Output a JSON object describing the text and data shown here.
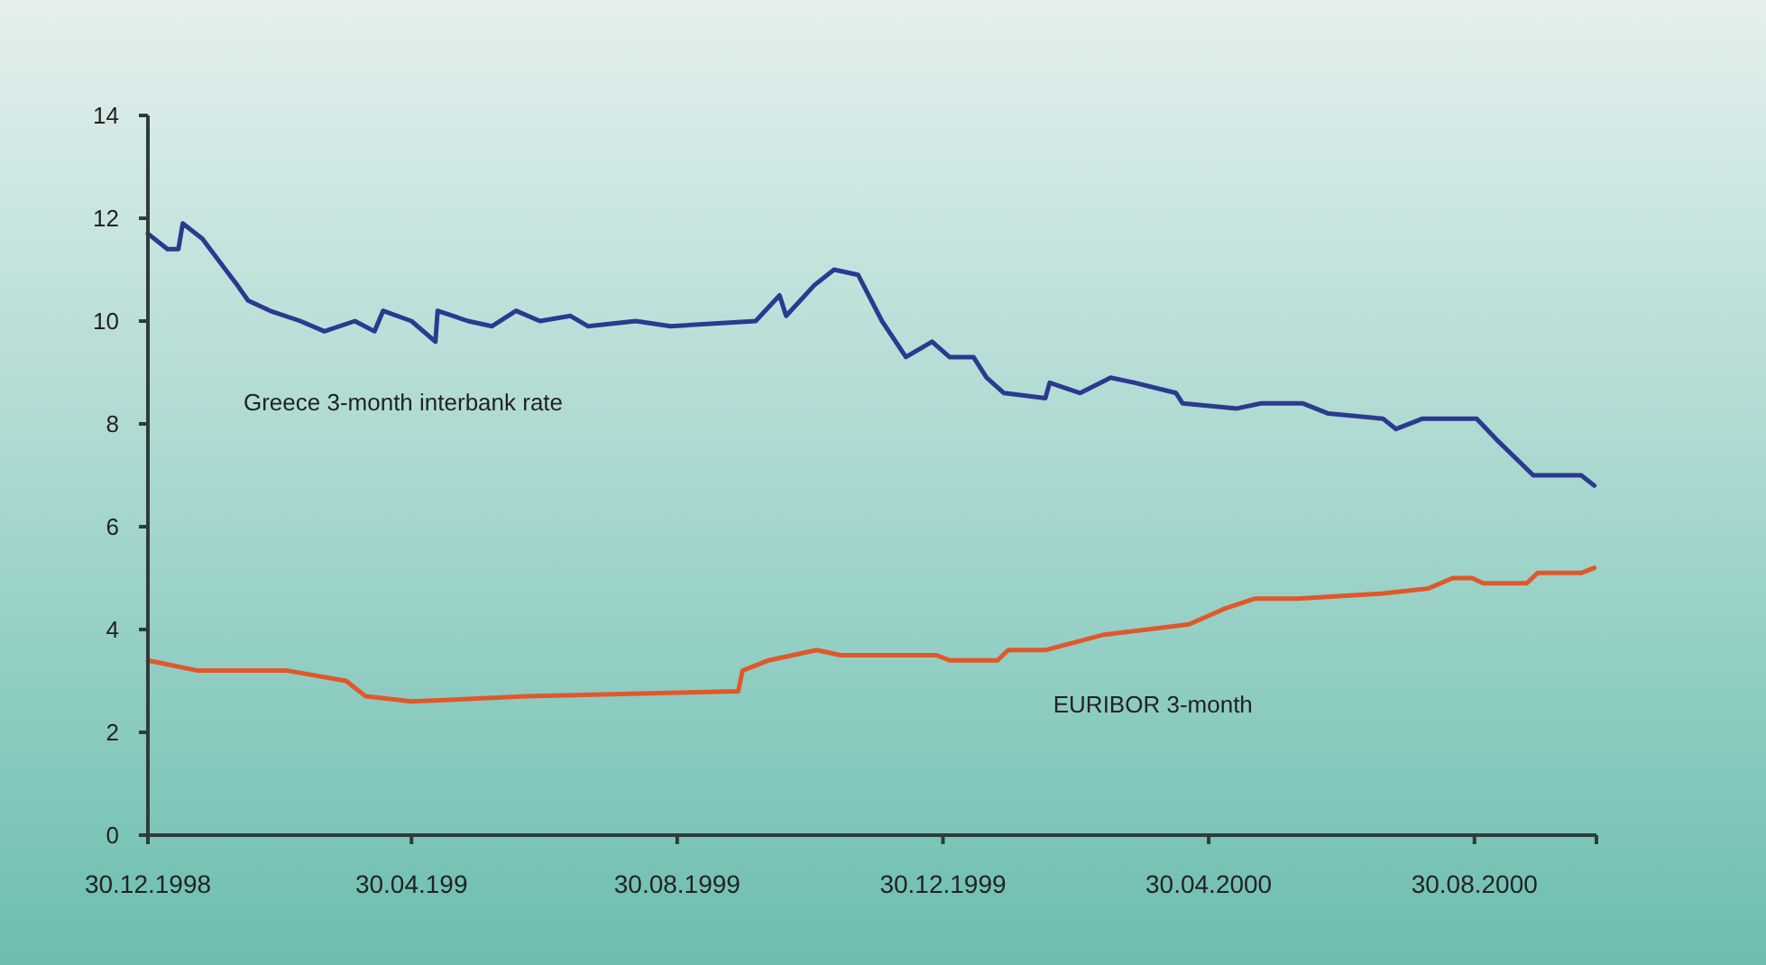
{
  "chart_data": {
    "type": "line",
    "x": [
      "1998-12-30",
      "1999-01-08",
      "1999-01-13",
      "1999-01-15",
      "1999-01-24",
      "1999-02-09",
      "1999-02-14",
      "1999-02-24",
      "1999-03-10",
      "1999-03-21",
      "1999-04-04",
      "1999-04-13",
      "1999-04-17",
      "1999-04-30",
      "1999-05-11",
      "1999-05-12",
      "1999-05-26",
      "1999-06-06",
      "1999-06-17",
      "1999-06-28",
      "1999-07-12",
      "1999-07-20",
      "1999-08-11",
      "1999-08-27",
      "1999-10-05",
      "1999-10-16",
      "1999-10-19",
      "1999-11-01",
      "1999-11-10",
      "1999-11-21",
      "1999-12-02",
      "1999-12-13",
      "1999-12-25",
      "2000-01-02",
      "2000-01-13",
      "2000-01-19",
      "2000-01-27",
      "2000-02-15",
      "2000-02-17",
      "2000-03-02",
      "2000-03-16",
      "2000-03-27",
      "2000-04-15",
      "2000-04-18",
      "2000-05-13",
      "2000-05-24",
      "2000-06-12",
      "2000-06-24",
      "2000-07-19",
      "2000-07-25",
      "2000-08-06",
      "2000-08-31",
      "2000-09-09",
      "2000-09-26",
      "2000-10-06",
      "2000-10-18",
      "2000-10-24"
    ],
    "series": [
      {
        "name": "Greece 3-month interbank rate",
        "color": "#2b3a8f",
        "values": [
          11.7,
          11.4,
          11.4,
          11.9,
          11.6,
          10.7,
          10.4,
          10.2,
          10.0,
          9.8,
          10.0,
          9.8,
          10.2,
          10.0,
          9.6,
          10.2,
          10.0,
          9.9,
          10.2,
          10.0,
          10.1,
          9.9,
          10.0,
          9.9,
          10.0,
          10.5,
          10.1,
          10.7,
          11.0,
          10.9,
          10.0,
          9.3,
          9.6,
          9.3,
          9.3,
          8.9,
          8.6,
          8.5,
          8.8,
          8.6,
          8.9,
          8.8,
          8.6,
          8.4,
          8.3,
          8.4,
          8.4,
          8.2,
          8.1,
          7.9,
          8.1,
          8.1,
          7.7,
          7.0,
          7.0,
          7.0,
          6.8
        ]
      },
      {
        "name": "EURIBOR 3-month",
        "color": "#e0582a",
        "x": [
          "1998-12-30",
          "1999-01-22",
          "1999-03-04",
          "1999-03-31",
          "1999-04-09",
          "1999-04-30",
          "1999-06-22",
          "1999-09-27",
          "1999-09-29",
          "1999-10-11",
          "1999-11-02",
          "1999-11-13",
          "1999-12-27",
          "2000-01-02",
          "2000-01-24",
          "2000-01-29",
          "2000-02-15",
          "2000-03-13",
          "2000-04-21",
          "2000-05-07",
          "2000-05-21",
          "2000-06-10",
          "2000-07-19",
          "2000-08-09",
          "2000-08-20",
          "2000-08-29",
          "2000-09-03",
          "2000-09-23",
          "2000-09-28",
          "2000-10-18",
          "2000-10-24"
        ],
        "values": [
          3.4,
          3.2,
          3.2,
          3.0,
          2.7,
          2.6,
          2.7,
          2.8,
          3.2,
          3.4,
          3.6,
          3.5,
          3.5,
          3.4,
          3.4,
          3.6,
          3.6,
          3.9,
          4.1,
          4.4,
          4.6,
          4.6,
          4.7,
          4.8,
          5.0,
          5.0,
          4.9,
          4.9,
          5.1,
          5.1,
          5.2
        ]
      }
    ],
    "xlim": [
      "1998-12-30",
      "2000-10-25"
    ],
    "xticks": [
      {
        "value": "1998-12-30",
        "label": "30.12.1998"
      },
      {
        "value": "1999-04-30",
        "label": "30.04.199"
      },
      {
        "value": "1999-08-30",
        "label": "30.08.1999"
      },
      {
        "value": "1999-12-30",
        "label": "30.12.1999"
      },
      {
        "value": "2000-04-30",
        "label": "30.04.2000"
      },
      {
        "value": "2000-08-30",
        "label": "30.08.2000"
      },
      {
        "value": "2000-10-25",
        "label": null
      }
    ],
    "ylim": [
      0,
      14
    ],
    "yticks": [
      0,
      2,
      4,
      6,
      8,
      10,
      12,
      14
    ],
    "grid": false,
    "legend": false,
    "marker": "none",
    "line_style": "solid"
  }
}
